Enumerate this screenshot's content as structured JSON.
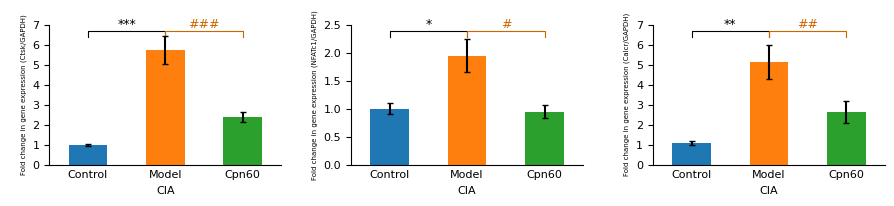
{
  "chart_data": [
    {
      "type": "bar",
      "ylabel": "Fold change in gene expression (Ctsk/GAPDH)",
      "xlabel": "CIA",
      "categories": [
        "Control",
        "Model",
        "Cpn60"
      ],
      "values": [
        1.0,
        5.75,
        2.4
      ],
      "errors": [
        0.05,
        0.7,
        0.25
      ],
      "colors": [
        "#1f77b4",
        "#ff7f0e",
        "#2ca02c"
      ],
      "ylim": [
        0,
        7
      ],
      "yticks": [
        0,
        1,
        2,
        3,
        4,
        5,
        6,
        7
      ],
      "brackets": [
        {
          "from": "Control",
          "to": "Model",
          "label": "***",
          "color": "#000000",
          "y": 6.7,
          "tip": 6.4
        },
        {
          "from": "Model",
          "to": "Cpn60",
          "label": "###",
          "color": "#cc6600",
          "y": 6.7,
          "tip": 6.4
        }
      ]
    },
    {
      "type": "bar",
      "ylabel": "Fold change in gene expression (NFATc1/GAPDH)",
      "xlabel": "CIA",
      "categories": [
        "Control",
        "Model",
        "Cpn60"
      ],
      "values": [
        1.0,
        1.95,
        0.95
      ],
      "errors": [
        0.1,
        0.3,
        0.12
      ],
      "colors": [
        "#1f77b4",
        "#ff7f0e",
        "#2ca02c"
      ],
      "ylim": [
        0,
        2.5
      ],
      "yticks": [
        0.0,
        0.5,
        1.0,
        1.5,
        2.0,
        2.5
      ],
      "brackets": [
        {
          "from": "Control",
          "to": "Model",
          "label": "*",
          "color": "#000000",
          "y": 2.38,
          "tip": 2.28
        },
        {
          "from": "Model",
          "to": "Cpn60",
          "label": "#",
          "color": "#cc6600",
          "y": 2.38,
          "tip": 2.28
        }
      ]
    },
    {
      "type": "bar",
      "ylabel": "Fold change in gene expression (Calcr/GAPDH)",
      "xlabel": "CIA",
      "categories": [
        "Control",
        "Model",
        "Cpn60"
      ],
      "values": [
        1.1,
        5.15,
        2.65
      ],
      "errors": [
        0.1,
        0.85,
        0.55
      ],
      "colors": [
        "#1f77b4",
        "#ff7f0e",
        "#2ca02c"
      ],
      "ylim": [
        0,
        7
      ],
      "yticks": [
        0,
        1,
        2,
        3,
        4,
        5,
        6,
        7
      ],
      "brackets": [
        {
          "from": "Control",
          "to": "Model",
          "label": "**",
          "color": "#000000",
          "y": 6.7,
          "tip": 6.4
        },
        {
          "from": "Model",
          "to": "Cpn60",
          "label": "##",
          "color": "#cc6600",
          "y": 6.7,
          "tip": 6.4
        }
      ]
    }
  ]
}
